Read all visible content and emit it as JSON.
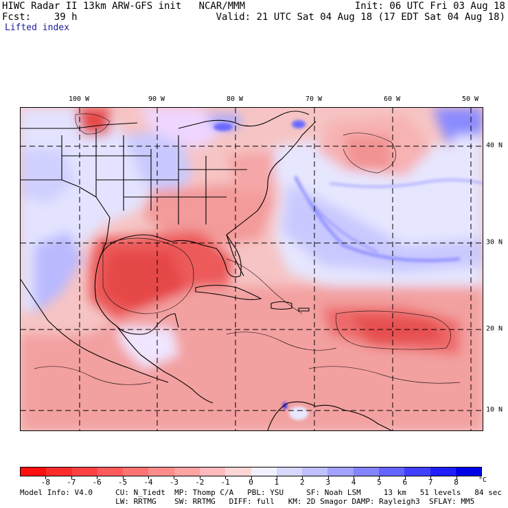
{
  "header": {
    "title": "HIWC Radar II 13km ARW-GFS init   NCAR/MMM",
    "forecast_label": "Fcst:",
    "forecast_hours": "39 h",
    "field": "Lifted index",
    "init": "Init: 06 UTC Fri 03 Aug 18",
    "valid": "Valid: 21 UTC Sat 04 Aug 18 (17 EDT Sat 04 Aug 18)"
  },
  "map": {
    "longitude_labels": [
      "100 W",
      "90 W",
      "80 W",
      "70 W",
      "60 W",
      "50 W"
    ],
    "latitude_labels": [
      "40 N",
      "30 N",
      "20 N",
      "10 N"
    ],
    "grid_style": "dashed"
  },
  "colorbar": {
    "unit": "°C",
    "tick_labels": [
      "-8",
      "-7",
      "-6",
      "-5",
      "-4",
      "-3",
      "-2",
      "-1",
      "0",
      "1",
      "2",
      "3",
      "4",
      "5",
      "6",
      "7",
      "8"
    ],
    "colors": [
      "#ff0f0f",
      "#ff2b2b",
      "#ff4343",
      "#ff5b5b",
      "#ff7373",
      "#ff8b8b",
      "#ffa3a3",
      "#ffbbbb",
      "#ffd6d6",
      "#f0f0ff",
      "#d8d8ff",
      "#c0c0ff",
      "#a2a2ff",
      "#8484ff",
      "#6464ff",
      "#4040ff",
      "#2020ff",
      "#0000e6"
    ]
  },
  "footer": {
    "line1": "Model Info: V4.0     CU: N_Tiedt  MP: Thomp C/A   PBL: YSU     SF: Noah LSM     13 km   51 levels   84 sec",
    "line2": "                     LW: RRTMG    SW: RRTMG   DIFF: full   KM: 2D Smagor DAMP: Rayleigh3  SFLAY: MM5"
  }
}
